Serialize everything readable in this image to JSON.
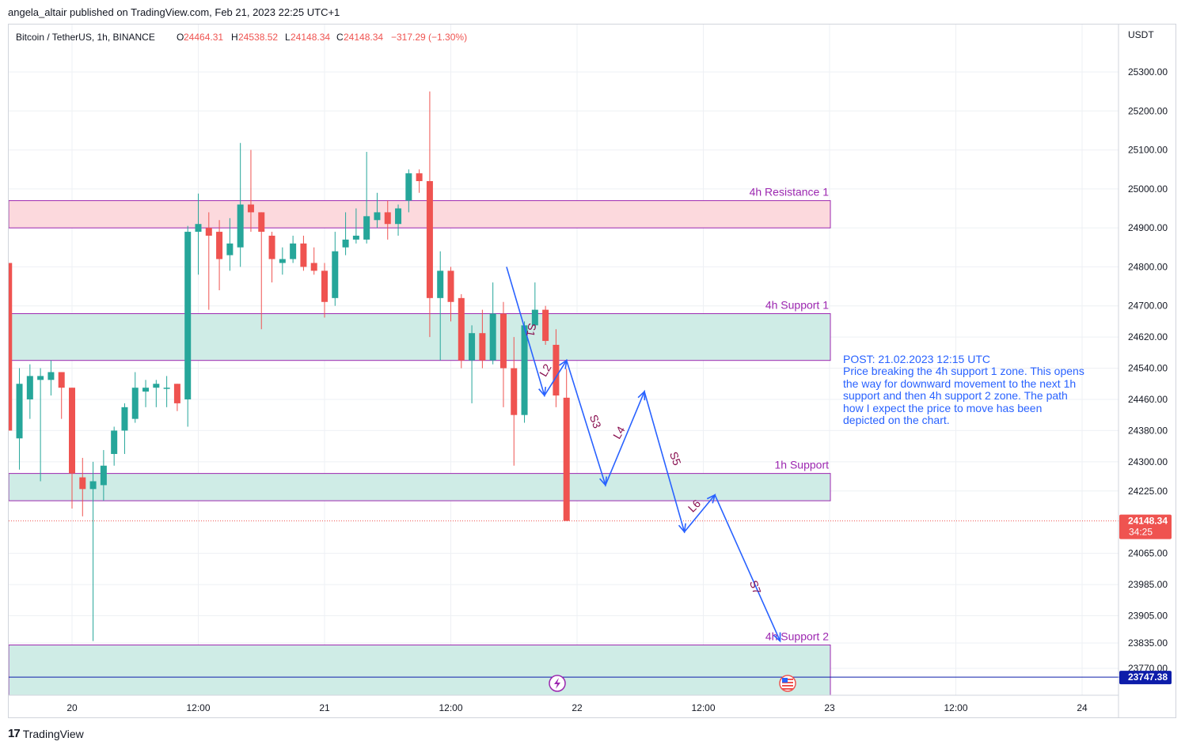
{
  "publisher": "angela_altair published on TradingView.com, Feb 21, 2023 22:25 UTC+1",
  "footer": {
    "brand": "TradingView",
    "logo_glyph": "17"
  },
  "colors": {
    "up": "#26a69a",
    "down": "#ef5350",
    "resistance_fill": "#fcd9dd",
    "support_fill": "#cfece6",
    "zone_border": "#9c27b0",
    "zone_label": "#9c27b0",
    "path": "#2962ff",
    "path_label": "#880e4f",
    "last_price_bg": "#ef5350",
    "level_line": "#0d1daa",
    "note_text": "#2962ff"
  },
  "legend": {
    "symbol": "Bitcoin / TetherUS, 1h, BINANCE",
    "open_label": "O",
    "open": "24464.31",
    "high_label": "H",
    "high": "24538.52",
    "low_label": "L",
    "low": "24148.34",
    "close_label": "C",
    "close": "24148.34",
    "change": "−317.29 (−1.30%)"
  },
  "note": {
    "lines": [
      "POST: 21.02.2023 12:15 UTC",
      "Price breaking the 4h support 1 zone. This opens",
      "the way for downward movement to the next 1h",
      "support and then 4h support 2 zone. The path",
      "how I expect the price to move has been",
      "depicted on the chart."
    ]
  },
  "chart_data": {
    "type": "candlestick",
    "currency_label": "USDT",
    "y_ticks": [
      {
        "value": 25300,
        "label": "25300.00"
      },
      {
        "value": 25200,
        "label": "25200.00"
      },
      {
        "value": 25100,
        "label": "25100.00"
      },
      {
        "value": 25000,
        "label": "25000.00"
      },
      {
        "value": 24900,
        "label": "24900.00"
      },
      {
        "value": 24800,
        "label": "24800.00"
      },
      {
        "value": 24700,
        "label": "24700.00"
      },
      {
        "value": 24620,
        "label": "24620.00"
      },
      {
        "value": 24540,
        "label": "24540.00"
      },
      {
        "value": 24460,
        "label": "24460.00"
      },
      {
        "value": 24380,
        "label": "24380.00"
      },
      {
        "value": 24300,
        "label": "24300.00"
      },
      {
        "value": 24225,
        "label": "24225.00"
      },
      {
        "value": 24065,
        "label": "24065.00"
      },
      {
        "value": 23985,
        "label": "23985.00"
      },
      {
        "value": 23905,
        "label": "23905.00"
      },
      {
        "value": 23835,
        "label": "23835.00"
      },
      {
        "value": 23770,
        "label": "23770.00"
      }
    ],
    "x_ticks": [
      {
        "t": 0,
        "label": "20"
      },
      {
        "t": 12,
        "label": "12:00"
      },
      {
        "t": 24,
        "label": "21"
      },
      {
        "t": 36,
        "label": "12:00"
      },
      {
        "t": 48,
        "label": "22"
      },
      {
        "t": 60,
        "label": "12:00"
      },
      {
        "t": 72,
        "label": "23"
      },
      {
        "t": 84,
        "label": "12:00"
      },
      {
        "t": 96,
        "label": "24"
      }
    ],
    "last_price": {
      "value": 24148.34,
      "label": "24148.34",
      "countdown": "34:25"
    },
    "level_line": {
      "value": 23747.38,
      "label": "23747.38"
    },
    "zones": [
      {
        "name": "4h Resistance 1",
        "top": 24970,
        "bottom": 24900,
        "kind": "resistance"
      },
      {
        "name": "4h Support 1",
        "top": 24680,
        "bottom": 24560,
        "kind": "support"
      },
      {
        "name": "1h Support",
        "top": 24270,
        "bottom": 24200,
        "kind": "support"
      },
      {
        "name": "4h Support 2",
        "top": 23830,
        "bottom": 23700,
        "kind": "support"
      }
    ],
    "path": [
      {
        "t": 41.3,
        "p": 24800
      },
      {
        "t": 44.9,
        "p": 24470
      },
      {
        "t": 47.0,
        "p": 24560
      },
      {
        "t": 50.7,
        "p": 24240
      },
      {
        "t": 54.4,
        "p": 24480
      },
      {
        "t": 58.2,
        "p": 24120
      },
      {
        "t": 61.1,
        "p": 24215
      },
      {
        "t": 67.3,
        "p": 23840
      }
    ],
    "path_labels": [
      {
        "text": "S1",
        "t": 43.3,
        "p": 24640,
        "angle": 100
      },
      {
        "text": "L2",
        "t": 45.3,
        "p": 24530,
        "angle": -60
      },
      {
        "text": "S3",
        "t": 49.4,
        "p": 24400,
        "angle": 70
      },
      {
        "text": "L4",
        "t": 52.3,
        "p": 24370,
        "angle": -60
      },
      {
        "text": "S5",
        "t": 57.0,
        "p": 24305,
        "angle": 70
      },
      {
        "text": "L6",
        "t": 59.4,
        "p": 24180,
        "angle": -45
      },
      {
        "text": "S7",
        "t": 64.6,
        "p": 23975,
        "angle": 70
      }
    ],
    "candles": [
      {
        "t": -6,
        "o": 24810,
        "h": 24810,
        "l": 24390,
        "c": 24380
      },
      {
        "t": -5,
        "o": 24360,
        "h": 24540,
        "l": 24280,
        "c": 24500
      },
      {
        "t": -4,
        "o": 24460,
        "h": 24550,
        "l": 24410,
        "c": 24520
      },
      {
        "t": -3,
        "o": 24510,
        "h": 24540,
        "l": 24250,
        "c": 24520
      },
      {
        "t": -2,
        "o": 24510,
        "h": 24560,
        "l": 24470,
        "c": 24530
      },
      {
        "t": -1,
        "o": 24530,
        "h": 24530,
        "l": 24410,
        "c": 24490
      },
      {
        "t": 0,
        "o": 24490,
        "h": 24490,
        "l": 24180,
        "c": 24270
      },
      {
        "t": 1,
        "o": 24260,
        "h": 24310,
        "l": 24160,
        "c": 24230
      },
      {
        "t": 2,
        "o": 24230,
        "h": 24300,
        "l": 23840,
        "c": 24250
      },
      {
        "t": 3,
        "o": 24240,
        "h": 24330,
        "l": 24200,
        "c": 24290
      },
      {
        "t": 4,
        "o": 24320,
        "h": 24390,
        "l": 24290,
        "c": 24380
      },
      {
        "t": 5,
        "o": 24380,
        "h": 24450,
        "l": 24320,
        "c": 24440
      },
      {
        "t": 6,
        "o": 24410,
        "h": 24530,
        "l": 24400,
        "c": 24490
      },
      {
        "t": 7,
        "o": 24480,
        "h": 24510,
        "l": 24440,
        "c": 24490
      },
      {
        "t": 8,
        "o": 24490,
        "h": 24510,
        "l": 24440,
        "c": 24500
      },
      {
        "t": 9,
        "o": 24490,
        "h": 24520,
        "l": 24440,
        "c": 24490
      },
      {
        "t": 10,
        "o": 24500,
        "h": 24500,
        "l": 24430,
        "c": 24450
      },
      {
        "t": 11,
        "o": 24460,
        "h": 24905,
        "l": 24390,
        "c": 24890
      },
      {
        "t": 12,
        "o": 24890,
        "h": 24988,
        "l": 24780,
        "c": 24910
      },
      {
        "t": 13,
        "o": 24900,
        "h": 24940,
        "l": 24690,
        "c": 24880
      },
      {
        "t": 14,
        "o": 24890,
        "h": 24920,
        "l": 24740,
        "c": 24820
      },
      {
        "t": 15,
        "o": 24830,
        "h": 24925,
        "l": 24790,
        "c": 24860
      },
      {
        "t": 16,
        "o": 24850,
        "h": 25118,
        "l": 24800,
        "c": 24960
      },
      {
        "t": 17,
        "o": 24960,
        "h": 25100,
        "l": 24890,
        "c": 24940
      },
      {
        "t": 18,
        "o": 24940,
        "h": 24940,
        "l": 24640,
        "c": 24890
      },
      {
        "t": 19,
        "o": 24880,
        "h": 24890,
        "l": 24760,
        "c": 24820
      },
      {
        "t": 20,
        "o": 24810,
        "h": 24850,
        "l": 24780,
        "c": 24820
      },
      {
        "t": 21,
        "o": 24820,
        "h": 24880,
        "l": 24810,
        "c": 24860
      },
      {
        "t": 22,
        "o": 24860,
        "h": 24880,
        "l": 24790,
        "c": 24800
      },
      {
        "t": 23,
        "o": 24810,
        "h": 24850,
        "l": 24780,
        "c": 24790
      },
      {
        "t": 24,
        "o": 24790,
        "h": 24810,
        "l": 24670,
        "c": 24710
      },
      {
        "t": 25,
        "o": 24720,
        "h": 24890,
        "l": 24700,
        "c": 24840
      },
      {
        "t": 26,
        "o": 24850,
        "h": 24940,
        "l": 24830,
        "c": 24870
      },
      {
        "t": 27,
        "o": 24870,
        "h": 24950,
        "l": 24860,
        "c": 24880
      },
      {
        "t": 28,
        "o": 24870,
        "h": 25095,
        "l": 24860,
        "c": 24930
      },
      {
        "t": 29,
        "o": 24920,
        "h": 24990,
        "l": 24900,
        "c": 24940
      },
      {
        "t": 30,
        "o": 24940,
        "h": 24970,
        "l": 24870,
        "c": 24910
      },
      {
        "t": 31,
        "o": 24910,
        "h": 24960,
        "l": 24880,
        "c": 24950
      },
      {
        "t": 32,
        "o": 24970,
        "h": 25050,
        "l": 24940,
        "c": 25040
      },
      {
        "t": 33,
        "o": 25040,
        "h": 25050,
        "l": 24990,
        "c": 25020
      },
      {
        "t": 34,
        "o": 25020,
        "h": 25250,
        "l": 24620,
        "c": 24720
      },
      {
        "t": 35,
        "o": 24720,
        "h": 24840,
        "l": 24560,
        "c": 24790
      },
      {
        "t": 36,
        "o": 24790,
        "h": 24800,
        "l": 24660,
        "c": 24710
      },
      {
        "t": 37,
        "o": 24720,
        "h": 24730,
        "l": 24540,
        "c": 24560
      },
      {
        "t": 38,
        "o": 24560,
        "h": 24650,
        "l": 24450,
        "c": 24630
      },
      {
        "t": 39,
        "o": 24630,
        "h": 24690,
        "l": 24540,
        "c": 24560
      },
      {
        "t": 40,
        "o": 24560,
        "h": 24760,
        "l": 24550,
        "c": 24680
      },
      {
        "t": 41,
        "o": 24680,
        "h": 24710,
        "l": 24440,
        "c": 24540
      },
      {
        "t": 42,
        "o": 24540,
        "h": 24620,
        "l": 24290,
        "c": 24420
      },
      {
        "t": 43,
        "o": 24420,
        "h": 24660,
        "l": 24400,
        "c": 24650
      },
      {
        "t": 44,
        "o": 24650,
        "h": 24760,
        "l": 24640,
        "c": 24690
      },
      {
        "t": 45,
        "o": 24690,
        "h": 24700,
        "l": 24600,
        "c": 24610
      },
      {
        "t": 46,
        "o": 24600,
        "h": 24640,
        "l": 24440,
        "c": 24470
      },
      {
        "t": 47,
        "o": 24464.31,
        "h": 24538.52,
        "l": 24148.34,
        "c": 24148.34
      }
    ],
    "grid": true,
    "legend_position": "top-left"
  }
}
